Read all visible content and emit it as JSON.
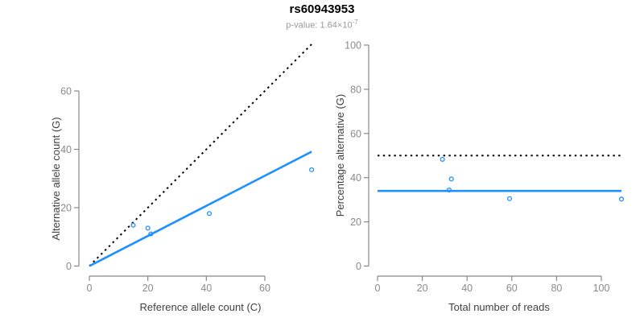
{
  "header": {
    "title": "rs60943953",
    "pvalue_text": "p-value: 1.64×10",
    "pvalue_exponent": "-7"
  },
  "colors": {
    "accent_blue": "#1E90FF",
    "dotted_black": "#000000",
    "axis_gray": "#888888",
    "tick_label_gray": "#8A8A8A",
    "axis_title_dark": "#404040",
    "subtitle_gray": "#999999"
  },
  "chart_data": [
    {
      "type": "scatter",
      "title": "rs60943953",
      "subtitle": "p-value: 1.64×10^-7",
      "xlabel": "Reference allele count (C)",
      "ylabel": "Alternative allele count (G)",
      "xlim": [
        0,
        77
      ],
      "ylim": [
        0,
        79
      ],
      "xticks": [
        0,
        20,
        40,
        60
      ],
      "yticks": [
        0,
        20,
        40,
        60
      ],
      "grid": false,
      "legend": "none",
      "point_color": "#1E90FF",
      "points": {
        "x": [
          15,
          20,
          21,
          41,
          76
        ],
        "y": [
          14,
          13,
          11,
          18,
          33
        ]
      },
      "lines": [
        {
          "name": "expected-balanced",
          "style": "dotted",
          "color": "#000000",
          "x": [
            0,
            76
          ],
          "y": [
            0,
            76
          ]
        },
        {
          "name": "fitted",
          "style": "solid",
          "color": "#1E90FF",
          "x": [
            0,
            76
          ],
          "y": [
            0,
            39.2
          ]
        }
      ]
    },
    {
      "type": "scatter",
      "xlabel": "Total number of reads",
      "ylabel": "Percentage alternative (G)",
      "xlim": [
        0,
        110
      ],
      "ylim": [
        0,
        100
      ],
      "xticks": [
        0,
        20,
        40,
        60,
        80,
        100
      ],
      "yticks": [
        0,
        20,
        40,
        60,
        80,
        100
      ],
      "grid": false,
      "legend": "none",
      "point_color": "#1E90FF",
      "points": {
        "x": [
          29,
          33,
          32,
          59,
          109
        ],
        "y": [
          48.3,
          39.4,
          34.4,
          30.5,
          30.3
        ]
      },
      "lines": [
        {
          "name": "expected-50pct",
          "style": "dotted",
          "color": "#000000",
          "x": [
            0,
            109
          ],
          "y": [
            50,
            50
          ]
        },
        {
          "name": "fitted",
          "style": "solid",
          "color": "#1E90FF",
          "x": [
            0,
            109
          ],
          "y": [
            34,
            34
          ]
        }
      ]
    }
  ]
}
